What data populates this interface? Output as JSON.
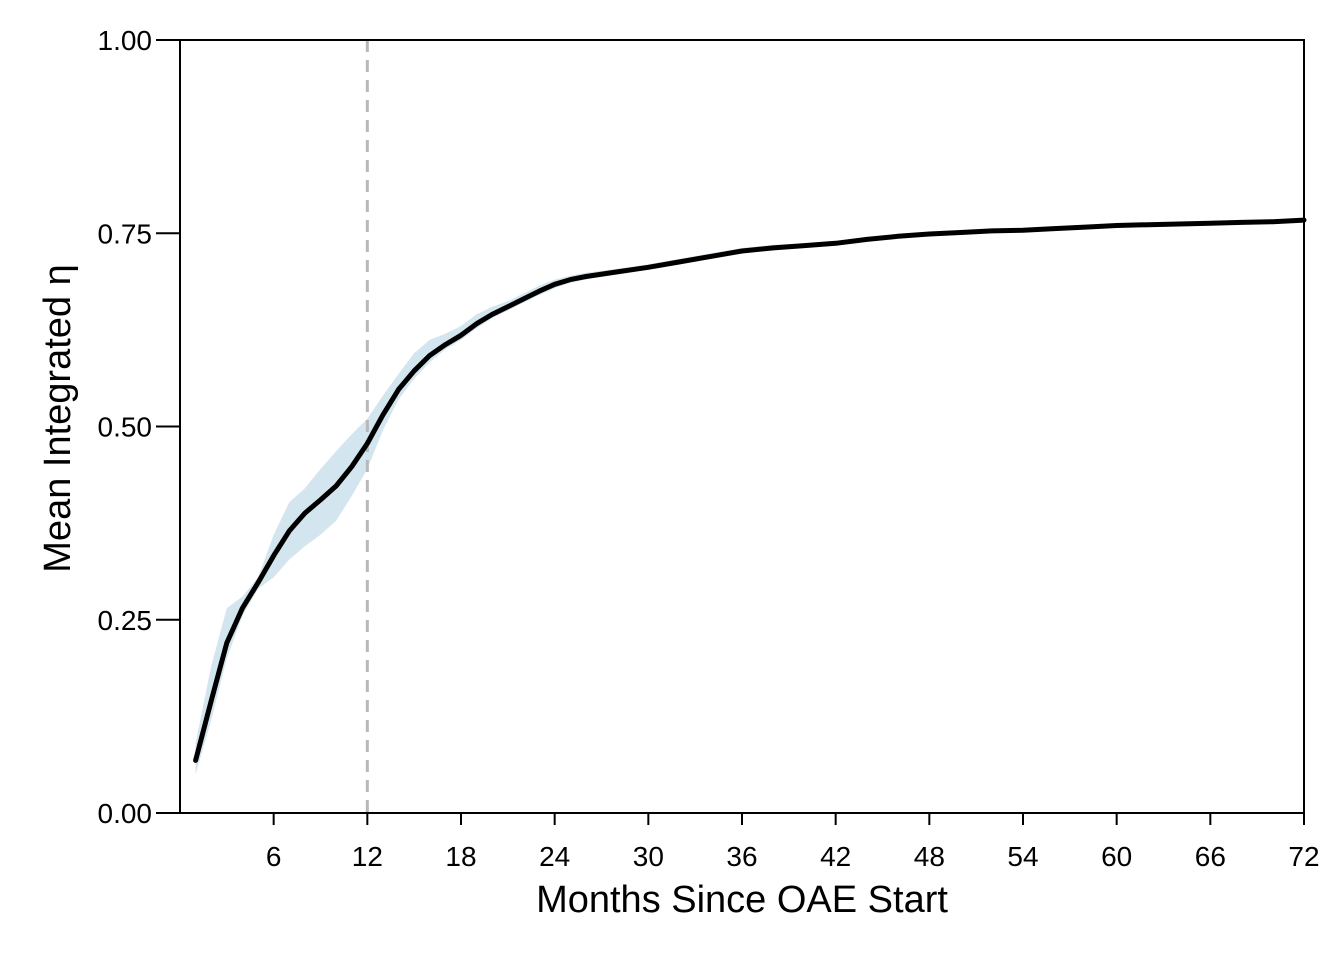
{
  "chart_data": {
    "type": "line",
    "title": "",
    "xlabel": "Months Since OAE Start",
    "ylabel": "Mean Integrated η",
    "xlim": [
      0,
      72
    ],
    "ylim": [
      0,
      1
    ],
    "x_ticks": [
      6,
      12,
      18,
      24,
      30,
      36,
      42,
      48,
      54,
      60,
      66,
      72
    ],
    "x_tick_labels": [
      "6",
      "12",
      "18",
      "24",
      "30",
      "36",
      "42",
      "48",
      "54",
      "60",
      "66",
      "72"
    ],
    "y_ticks": [
      0,
      0.25,
      0.5,
      0.75,
      1.0
    ],
    "y_tick_labels": [
      "0.00",
      "0.25",
      "0.50",
      "0.75",
      "1.00"
    ],
    "grid": false,
    "reference_line": {
      "axis": "x",
      "value": 12,
      "style": "dashed",
      "color": "#b8b8b8"
    },
    "series": [
      {
        "color": "#000000",
        "band_color": "#d3e5ef",
        "x": [
          1,
          2,
          3,
          4,
          5,
          6,
          7,
          8,
          9,
          10,
          11,
          12,
          13,
          14,
          15,
          16,
          17,
          18,
          19,
          20,
          21,
          22,
          23,
          24,
          25,
          26,
          28,
          30,
          32,
          34,
          36,
          38,
          40,
          42,
          44,
          46,
          48,
          50,
          52,
          54,
          56,
          58,
          60,
          62,
          64,
          66,
          68,
          70,
          72
        ],
        "y": [
          0.068,
          0.145,
          0.22,
          0.265,
          0.298,
          0.333,
          0.365,
          0.388,
          0.405,
          0.423,
          0.448,
          0.478,
          0.515,
          0.548,
          0.572,
          0.592,
          0.606,
          0.618,
          0.633,
          0.645,
          0.655,
          0.665,
          0.675,
          0.684,
          0.69,
          0.694,
          0.7,
          0.706,
          0.713,
          0.72,
          0.727,
          0.731,
          0.734,
          0.737,
          0.742,
          0.746,
          0.749,
          0.751,
          0.753,
          0.754,
          0.756,
          0.758,
          0.76,
          0.761,
          0.762,
          0.763,
          0.764,
          0.765,
          0.767
        ],
        "lower": [
          0.05,
          0.12,
          0.2,
          0.255,
          0.29,
          0.305,
          0.328,
          0.345,
          0.36,
          0.378,
          0.41,
          0.445,
          0.495,
          0.535,
          0.562,
          0.583,
          0.6,
          0.612,
          0.627,
          0.64,
          0.65,
          0.66,
          0.67,
          0.679,
          0.686,
          0.69,
          0.697,
          0.703,
          0.71,
          0.717,
          0.724,
          0.728,
          0.732,
          0.735,
          0.74,
          0.744,
          0.747,
          0.749,
          0.751,
          0.752,
          0.754,
          0.756,
          0.758,
          0.759,
          0.76,
          0.761,
          0.762,
          0.763,
          0.765
        ],
        "upper": [
          0.09,
          0.19,
          0.265,
          0.28,
          0.305,
          0.36,
          0.402,
          0.42,
          0.445,
          0.468,
          0.49,
          0.51,
          0.54,
          0.568,
          0.595,
          0.612,
          0.62,
          0.63,
          0.645,
          0.655,
          0.662,
          0.672,
          0.682,
          0.69,
          0.695,
          0.699,
          0.704,
          0.71,
          0.717,
          0.724,
          0.731,
          0.735,
          0.737,
          0.74,
          0.745,
          0.748,
          0.751,
          0.753,
          0.755,
          0.756,
          0.758,
          0.76,
          0.762,
          0.763,
          0.764,
          0.765,
          0.766,
          0.767,
          0.769
        ]
      }
    ]
  }
}
